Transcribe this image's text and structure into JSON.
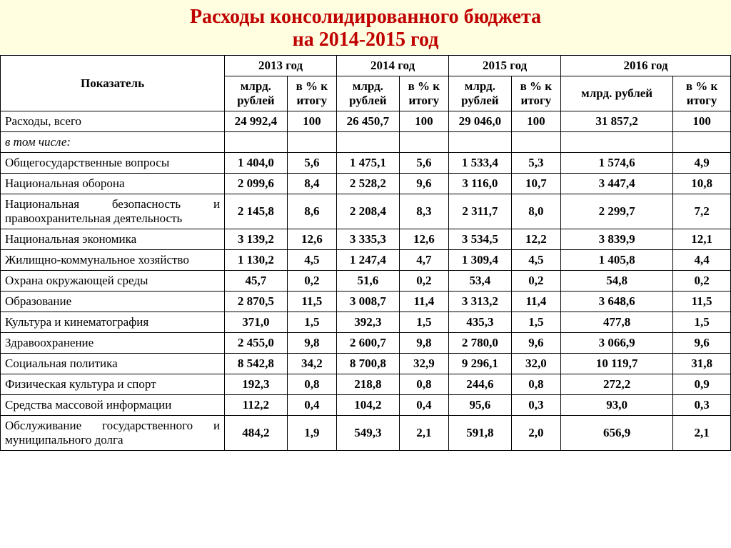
{
  "title": {
    "line1": "Расходы консолидированного бюджета",
    "line2": "на 2014-2015 год"
  },
  "header": {
    "indicator": "Показатель",
    "years": [
      "2013 год",
      "2014 год",
      "2015 год",
      "2016 год"
    ],
    "sub_val": "млрд. рублей",
    "sub_pct": "в % к итогу"
  },
  "rows": [
    {
      "label": "Расходы, всего",
      "class": "total",
      "v": [
        "24 992,4",
        "100",
        "26 450,7",
        "100",
        "29 046,0",
        "100",
        "31 857,2",
        "100"
      ]
    },
    {
      "label": "в том числе:",
      "class": "subhead",
      "v": [
        "",
        "",
        "",
        "",
        "",
        "",
        "",
        ""
      ]
    },
    {
      "label": "Общегосударственные вопросы",
      "v": [
        "1 404,0",
        "5,6",
        "1 475,1",
        "5,6",
        "1 533,4",
        "5,3",
        "1 574,6",
        "4,9"
      ]
    },
    {
      "label": "Национальная оборона",
      "v": [
        "2 099,6",
        "8,4",
        "2 528,2",
        "9,6",
        "3 116,0",
        "10,7",
        "3 447,4",
        "10,8"
      ]
    },
    {
      "label": "Национальная безопасность и правоохранительная деятельность",
      "justify": true,
      "v": [
        "2 145,8",
        "8,6",
        "2 208,4",
        "8,3",
        "2 311,7",
        "8,0",
        "2 299,7",
        "7,2"
      ]
    },
    {
      "label": "Национальная экономика",
      "v": [
        "3 139,2",
        "12,6",
        "3 335,3",
        "12,6",
        "3 534,5",
        "12,2",
        "3 839,9",
        "12,1"
      ]
    },
    {
      "label": "Жилищно-коммунальное хозяйство",
      "v": [
        "1 130,2",
        "4,5",
        "1 247,4",
        "4,7",
        "1 309,4",
        "4,5",
        "1 405,8",
        "4,4"
      ]
    },
    {
      "label": "Охрана окружающей среды",
      "v": [
        "45,7",
        "0,2",
        "51,6",
        "0,2",
        "53,4",
        "0,2",
        "54,8",
        "0,2"
      ]
    },
    {
      "label": "Образование",
      "v": [
        "2 870,5",
        "11,5",
        "3 008,7",
        "11,4",
        "3 313,2",
        "11,4",
        "3 648,6",
        "11,5"
      ]
    },
    {
      "label": "Культура и кинематография",
      "v": [
        "371,0",
        "1,5",
        "392,3",
        "1,5",
        "435,3",
        "1,5",
        "477,8",
        "1,5"
      ]
    },
    {
      "label": "Здравоохранение",
      "v": [
        "2 455,0",
        "9,8",
        "2 600,7",
        "9,8",
        "2 780,0",
        "9,6",
        "3 066,9",
        "9,6"
      ]
    },
    {
      "label": "Социальная политика",
      "v": [
        "8 542,8",
        "34,2",
        "8 700,8",
        "32,9",
        "9 296,1",
        "32,0",
        "10 119,7",
        "31,8"
      ]
    },
    {
      "label": "Физическая культура и спорт",
      "v": [
        "192,3",
        "0,8",
        "218,8",
        "0,8",
        "244,6",
        "0,8",
        "272,2",
        "0,9"
      ]
    },
    {
      "label": "Средства массовой информации",
      "v": [
        "112,2",
        "0,4",
        "104,2",
        "0,4",
        "95,6",
        "0,3",
        "93,0",
        "0,3"
      ]
    },
    {
      "label": "Обслуживание государственного и муниципального долга",
      "justify": true,
      "v": [
        "484,2",
        "1,9",
        "549,3",
        "2,1",
        "591,8",
        "2,0",
        "656,9",
        "2,1"
      ]
    }
  ],
  "style": {
    "title_bg": "#fffee0",
    "title_color": "#c00000",
    "title_fontsize": 28,
    "cell_fontsize": 17,
    "border_color": "#000000",
    "font_family": "Times New Roman"
  }
}
